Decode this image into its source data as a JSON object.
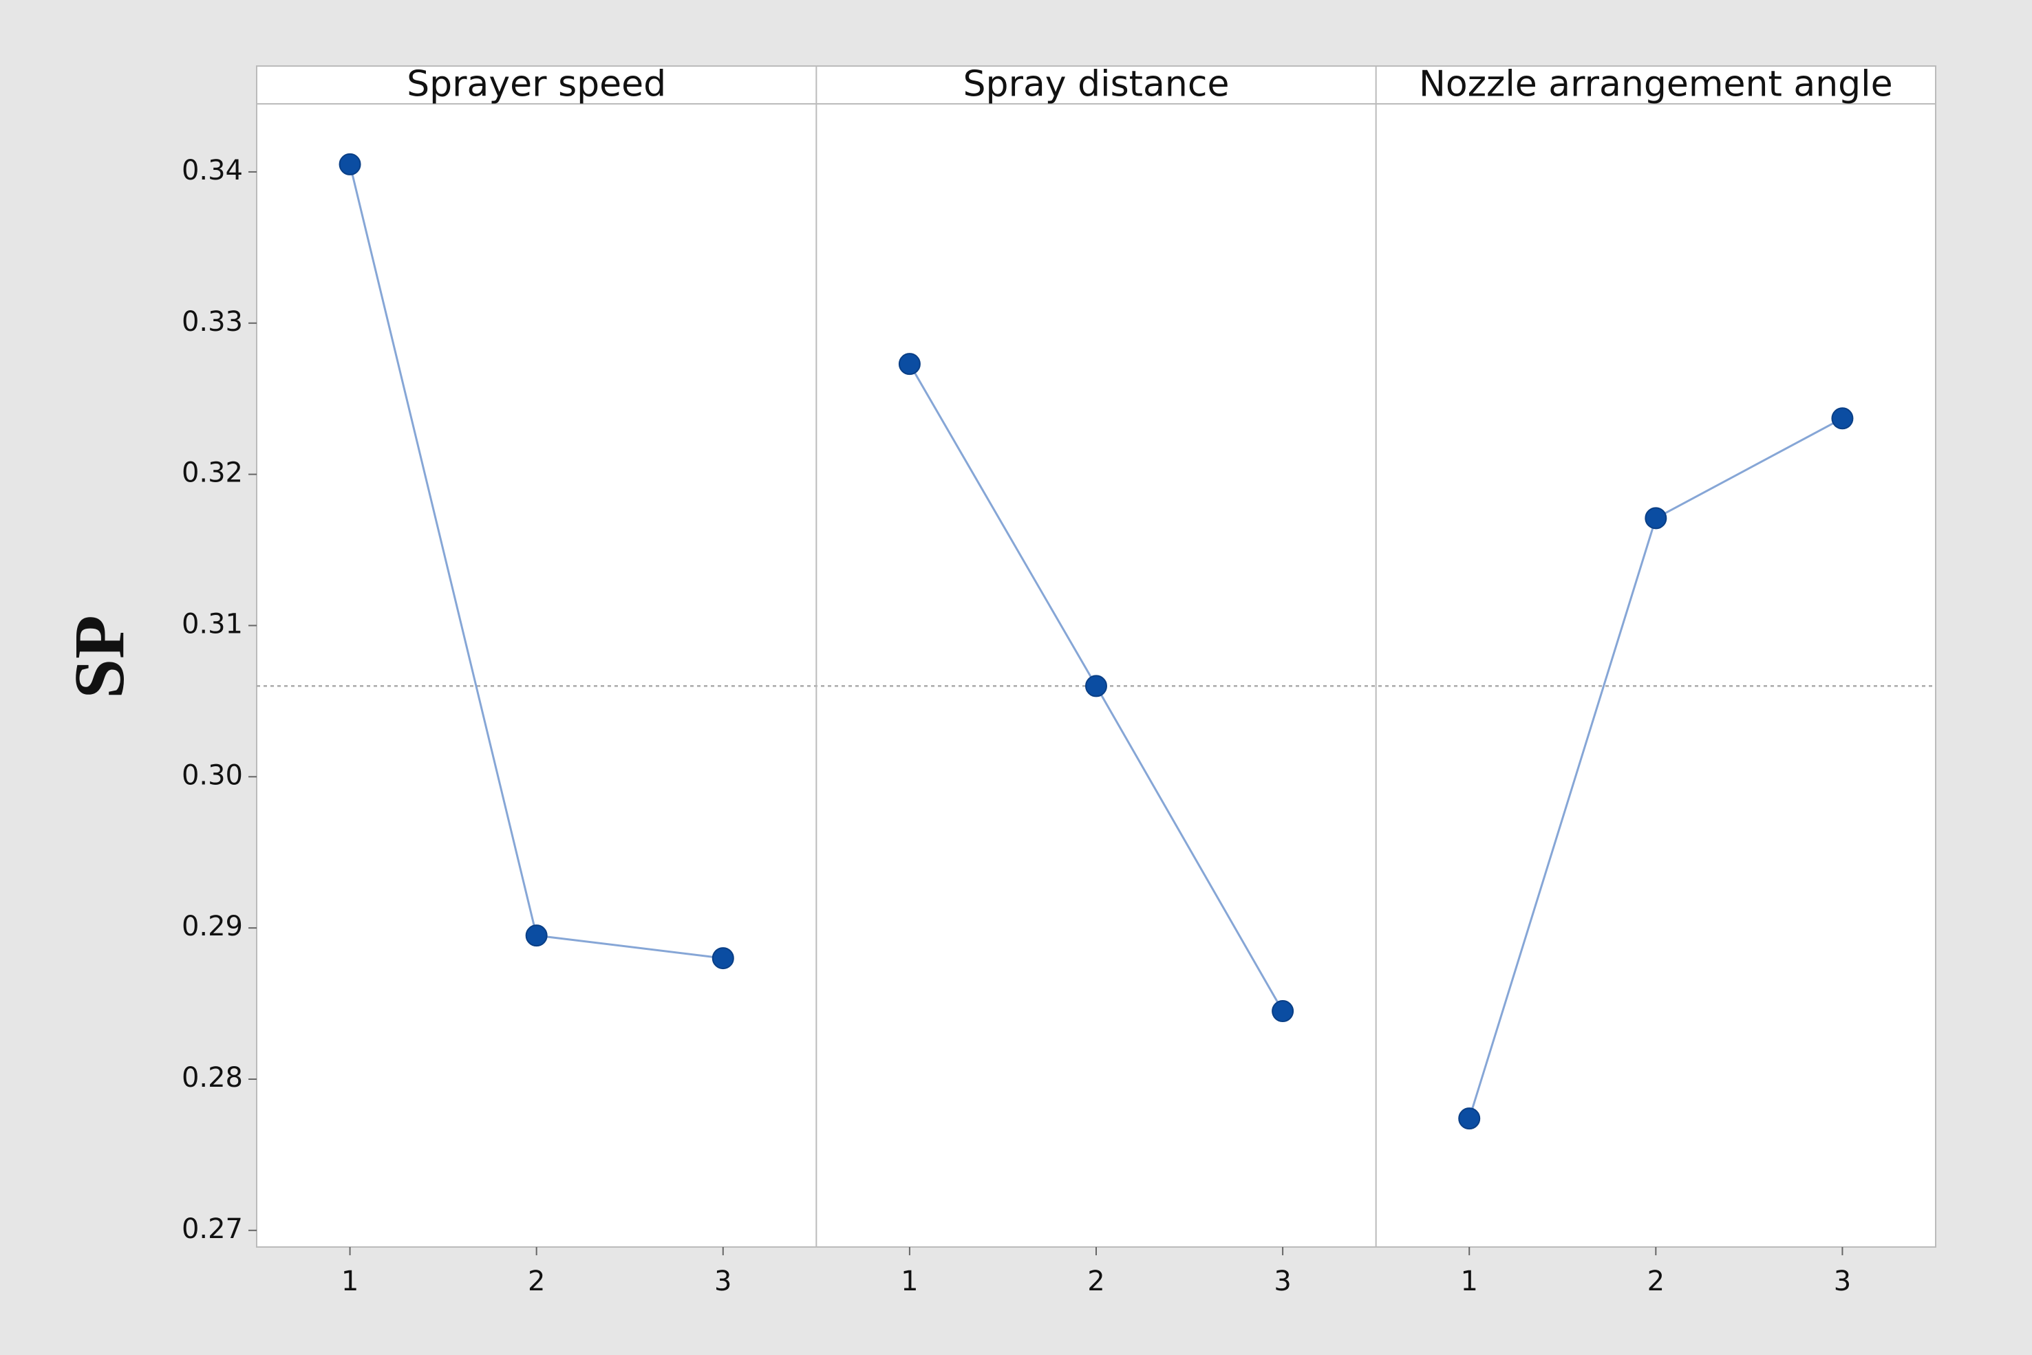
{
  "chart_data": {
    "type": "line",
    "ylabel": "SP",
    "ylim": [
      0.2689,
      0.3445
    ],
    "yticks": [
      {
        "value": 0.27,
        "label": "0.27"
      },
      {
        "value": 0.28,
        "label": "0.28"
      },
      {
        "value": 0.29,
        "label": "0.29"
      },
      {
        "value": 0.3,
        "label": "0.30"
      },
      {
        "value": 0.31,
        "label": "0.31"
      },
      {
        "value": 0.32,
        "label": "0.32"
      },
      {
        "value": 0.33,
        "label": "0.33"
      },
      {
        "value": 0.34,
        "label": "0.34"
      }
    ],
    "mean": 0.306,
    "color": "#0b4da2",
    "line_color": "#86a6d6",
    "panels": [
      {
        "title": "Sprayer speed",
        "categories": [
          "1",
          "2",
          "3"
        ],
        "values": [
          0.3405,
          0.2895,
          0.288
        ]
      },
      {
        "title": "Spray distance",
        "categories": [
          "1",
          "2",
          "3"
        ],
        "values": [
          0.3273,
          0.306,
          0.2845
        ]
      },
      {
        "title": "Nozzle arrangement angle",
        "categories": [
          "1",
          "2",
          "3"
        ],
        "values": [
          0.2774,
          0.3171,
          0.3237
        ]
      }
    ]
  }
}
